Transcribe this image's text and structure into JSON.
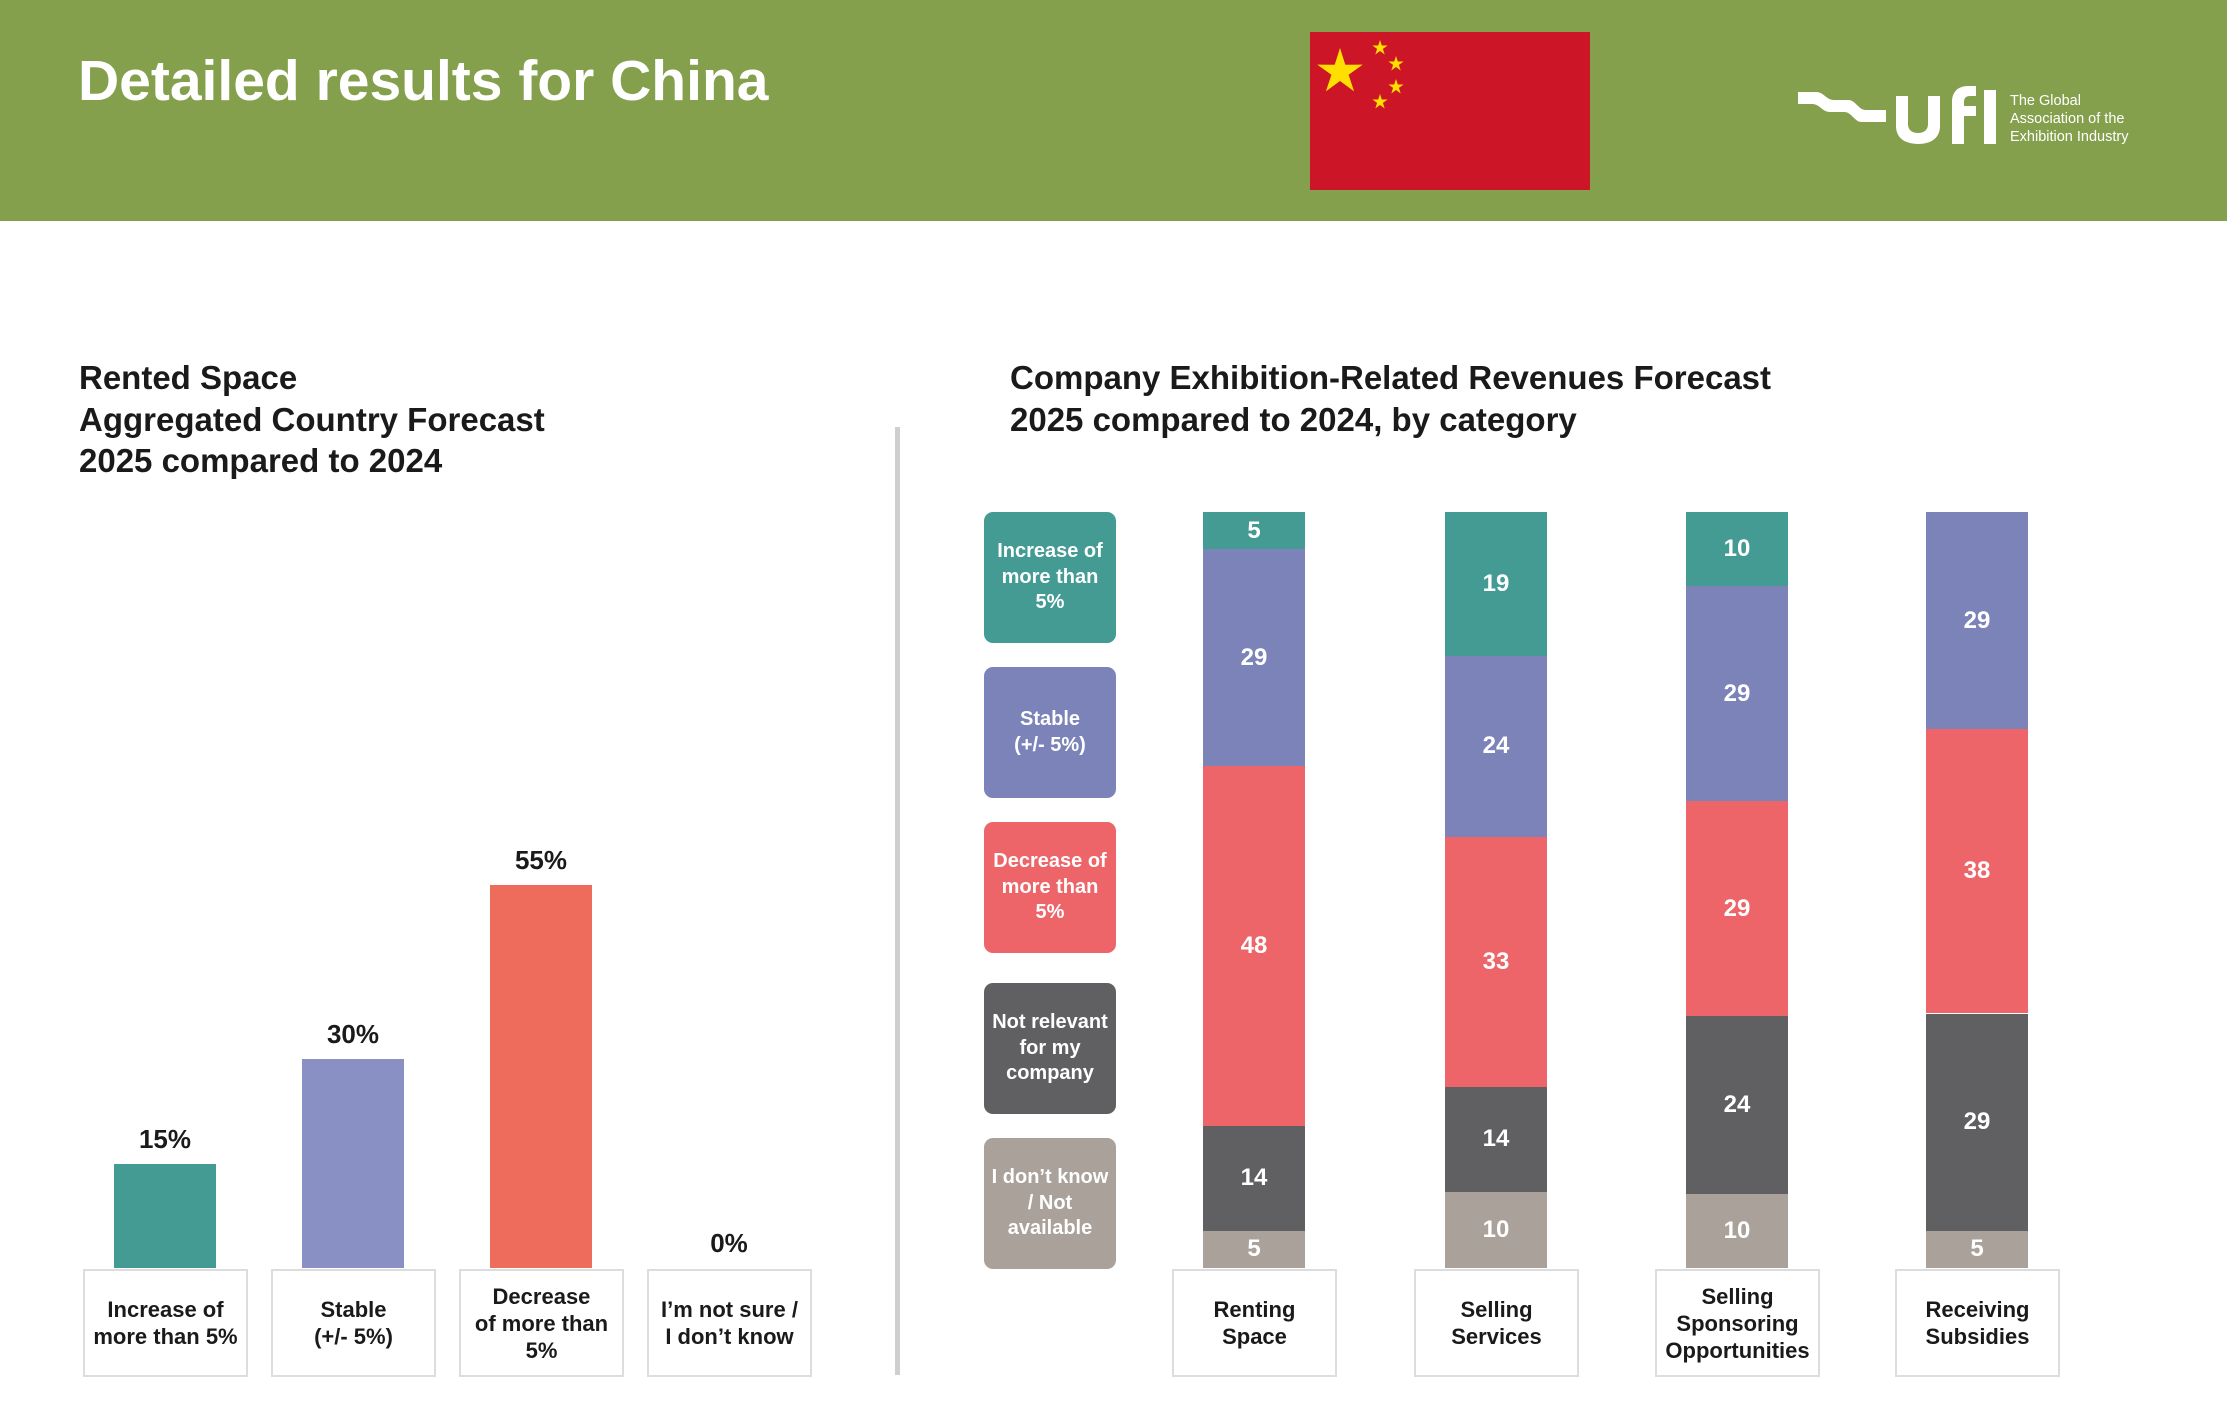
{
  "header": {
    "title": "Detailed results for China",
    "background": "#84a04c"
  },
  "flag": {
    "name": "China flag",
    "field_color": "#cc1527",
    "star_color": "#ffde00"
  },
  "logo": {
    "wordmark": "ufi",
    "tagline": [
      "The Global",
      "Association of the",
      "Exhibition Industry"
    ]
  },
  "left_chart": {
    "title_lines": [
      "Rented Space",
      "Aggregated Country Forecast",
      "2025 compared to 2024"
    ]
  },
  "right_chart": {
    "title_lines": [
      "Company Exhibition-Related Revenues Forecast",
      "2025 compared to 2024, by category"
    ]
  },
  "legend": [
    {
      "label": "Increase of\nmore than\n5%",
      "color": "#439b93"
    },
    {
      "label": "Stable\n(+/- 5%)",
      "color": "#7b83b8"
    },
    {
      "label": "Decrease of\nmore than\n5%",
      "color": "#ee6569"
    },
    {
      "label": "Not relevant\nfor my\ncompany",
      "color": "#606063"
    },
    {
      "label": "I don’t know\n/ Not\navailable",
      "color": "#a9a19a"
    }
  ],
  "chart_data": [
    {
      "type": "bar",
      "title": "Rented Space Aggregated Country Forecast 2025 compared to 2024",
      "categories": [
        "Increase of\nmore than 5%",
        "Stable\n(+/- 5%)",
        "Decrease\nof more than\n5%",
        "I’m not sure /\nI don’t know"
      ],
      "values": [
        15,
        30,
        55,
        0
      ],
      "value_labels": [
        "15%",
        "30%",
        "55%",
        "0%"
      ],
      "colors": [
        "#439b93",
        "#8890c4",
        "#ee6c5b",
        "#a9a19a"
      ],
      "xlabel": "",
      "ylabel": "",
      "ylim": [
        0,
        55
      ],
      "grid": false
    },
    {
      "type": "bar",
      "stacked": true,
      "title": "Company Exhibition-Related Revenues Forecast 2025 compared to 2024, by category",
      "categories": [
        "Renting\nSpace",
        "Selling\nServices",
        "Selling\nSponsoring\nOpportunities",
        "Receiving\nSubsidies"
      ],
      "series": [
        {
          "name": "Increase of more than 5%",
          "color": "#439b93",
          "values": [
            5,
            19,
            10,
            0
          ]
        },
        {
          "name": "Stable (+/- 5%)",
          "color": "#7b83b8",
          "values": [
            29,
            24,
            29,
            29
          ]
        },
        {
          "name": "Decrease of more than 5%",
          "color": "#ee6569",
          "values": [
            48,
            33,
            29,
            38
          ]
        },
        {
          "name": "Not relevant for my company",
          "color": "#606063",
          "values": [
            14,
            14,
            24,
            29
          ]
        },
        {
          "name": "I don’t know / Not available",
          "color": "#a9a19a",
          "values": [
            5,
            10,
            10,
            5
          ]
        }
      ],
      "xlabel": "",
      "ylabel": "",
      "ylim": [
        0,
        100
      ],
      "legend": "left",
      "grid": false
    }
  ]
}
